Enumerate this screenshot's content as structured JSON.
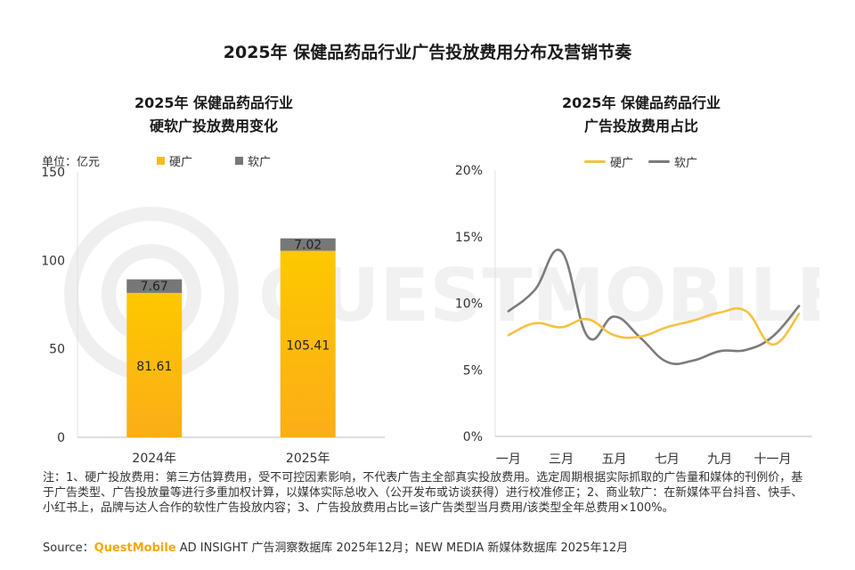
{
  "main_title": "2025年 保健品药品行业广告投放费用分布及营销节奏",
  "left_title_line1": "2025年 保健品药品行业",
  "left_title_line2": "硬软广投放费用变化",
  "right_title_line1": "2025年 保健品药品行业",
  "right_title_line2": "广告投放费用占比",
  "unit_label": "单位：亿元",
  "notes": "注：1、硬广投放费用：第三方估算费用，受不可控因素影响，不代表广告主全部真实投放费用。选定周期根据实际抓取的广告量和媒体的刊例价，基于广告类型、广告投放量等进行多重加权计算，以媒体实际总收入（公开发布或访谈获得）进行校准修正；2、商业软广：在新媒体平台抖音、快手、小红书上，品牌与达人合作的软性广告投放内容；3、广告投放费用占比=该广告类型当月费用/该类型全年总费用×100%。",
  "source_prefix": "Source：",
  "source_brand": "QuestMobile",
  "source_rest": " AD INSIGHT 广告洞察数据库 2025年12月；NEW MEDIA 新媒体数据库 2025年12月",
  "watermark_text": "QUESTMOBILE",
  "colors": {
    "hard": "#fdb913",
    "soft": "#777777",
    "line_hard": "#f5c242",
    "line_soft": "#7b7b7b",
    "brand": "#f5a800"
  },
  "chart_data": [
    {
      "type": "bar",
      "stacked": true,
      "title": "2025年 保健品药品行业 硬软广投放费用变化",
      "ylabel": "单位：亿元",
      "categories": [
        "2024年",
        "2025年"
      ],
      "series": [
        {
          "name": "硬广",
          "values": [
            81.61,
            105.41
          ],
          "labels": [
            "81.61",
            "105.41"
          ]
        },
        {
          "name": "软广",
          "values": [
            7.67,
            7.02
          ],
          "labels": [
            "7.67",
            "7.02"
          ]
        }
      ],
      "ylim": [
        0,
        150
      ],
      "yticks": [
        0,
        50,
        100,
        150
      ],
      "ytick_labels": [
        "0",
        "50",
        "100",
        "150"
      ],
      "legend_position": "top"
    },
    {
      "type": "line",
      "title": "2025年 保健品药品行业 广告投放费用占比",
      "x": [
        1,
        2,
        3,
        4,
        5,
        6,
        7,
        8,
        9,
        10,
        11,
        12
      ],
      "xtick_labels": [
        "一月",
        "三月",
        "五月",
        "七月",
        "九月",
        "十一月"
      ],
      "xtick_positions": [
        1,
        3,
        5,
        7,
        9,
        11
      ],
      "series": [
        {
          "name": "硬广",
          "values": [
            7.6,
            8.5,
            8.2,
            8.8,
            7.6,
            7.5,
            8.2,
            8.7,
            9.3,
            9.4,
            6.9,
            9.2
          ]
        },
        {
          "name": "软广",
          "values": [
            9.4,
            11.0,
            13.9,
            7.5,
            9.0,
            7.4,
            5.6,
            5.7,
            6.4,
            6.5,
            7.5,
            9.8
          ]
        }
      ],
      "ylim": [
        0,
        20
      ],
      "yticks": [
        0,
        5,
        10,
        15,
        20
      ],
      "ytick_labels": [
        "0%",
        "5%",
        "10%",
        "15%",
        "20%"
      ],
      "legend_position": "top-left"
    }
  ]
}
